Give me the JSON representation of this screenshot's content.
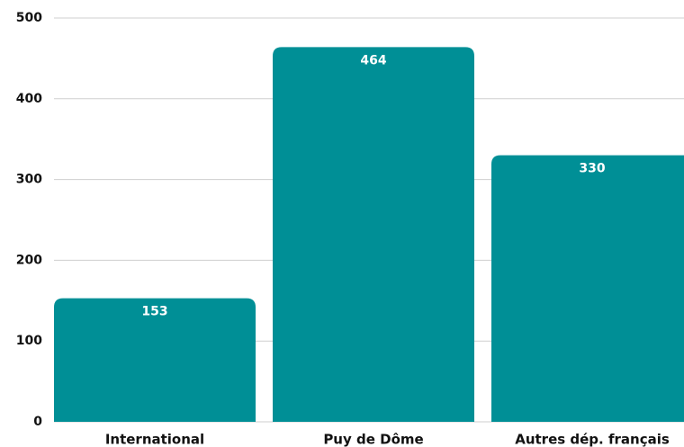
{
  "chart_data": {
    "type": "bar",
    "categories": [
      "International",
      "Puy de Dôme",
      "Autres dép. français"
    ],
    "values": [
      153,
      464,
      330
    ],
    "color": "#008f96",
    "ylim": [
      0,
      500
    ],
    "yticks": [
      0,
      100,
      200,
      300,
      400,
      500
    ],
    "grid": true
  }
}
